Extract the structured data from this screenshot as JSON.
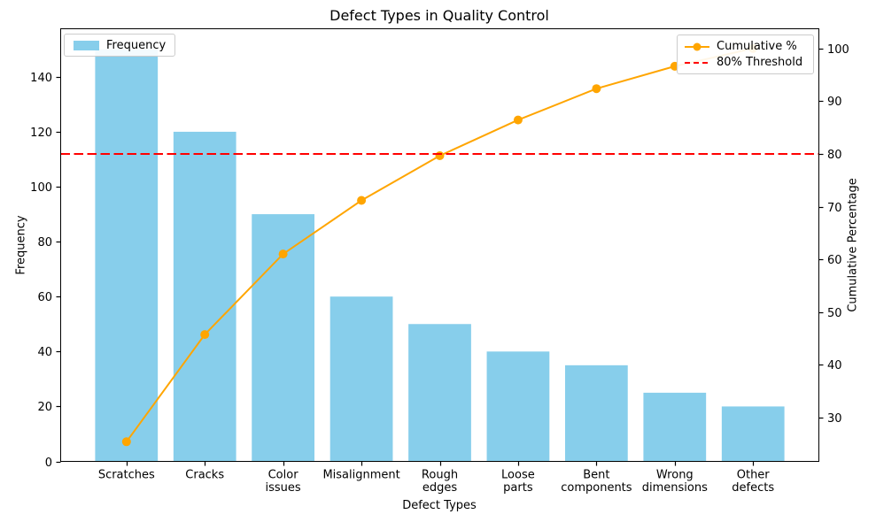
{
  "colors": {
    "bar": "#87CEEB",
    "line": "#FFA500",
    "threshold": "#FF0000",
    "text": "#000000",
    "spine": "#000000",
    "legend_border": "#CCCCCC"
  },
  "chart_data": {
    "type": "bar+line (pareto)",
    "title": "Defect Types in Quality Control",
    "categories": [
      "Scratches",
      "Cracks",
      "Color\nissues",
      "Misalignment",
      "Rough\nedges",
      "Loose\nparts",
      "Bent\ncomponents",
      "Wrong\ndimensions",
      "Other\ndefects"
    ],
    "bar_series": {
      "name": "Frequency",
      "values": [
        150,
        120,
        90,
        60,
        50,
        40,
        35,
        25,
        20
      ],
      "color": "#87CEEB"
    },
    "line_series": {
      "name": "Cumulative %",
      "values": [
        25.42,
        45.76,
        61.02,
        71.19,
        79.66,
        86.44,
        92.37,
        96.61,
        100.0
      ],
      "color": "#FFA500"
    },
    "threshold_line": {
      "name": "80% Threshold",
      "value": 80,
      "color": "#FF0000",
      "style": "dashed"
    },
    "xlabel": "Defect Types",
    "ylabel_left": "Frequency",
    "ylabel_right": "Cumulative Percentage",
    "yticks_left": [
      0,
      20,
      40,
      60,
      80,
      100,
      120,
      140
    ],
    "yticks_right": [
      30,
      40,
      50,
      60,
      70,
      80,
      90,
      100
    ],
    "ylim_left": [
      0,
      157.5
    ],
    "ylim_right": [
      21.7,
      103.73
    ],
    "bar_width_fraction": 0.8,
    "grid": false,
    "legend_left_position": "upper left",
    "legend_right_position": "upper right"
  }
}
